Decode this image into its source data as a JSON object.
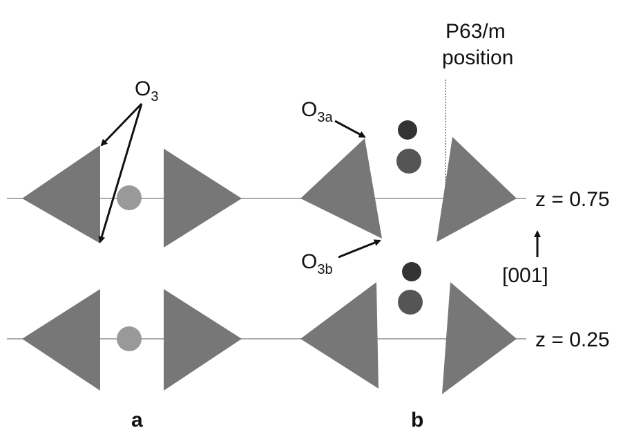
{
  "labels": {
    "o3": {
      "main": "O",
      "sub": "3"
    },
    "o3a": {
      "main": "O",
      "sub": "3a"
    },
    "o3b": {
      "main": "O",
      "sub": "3b"
    },
    "symmetry": {
      "line1": "P63/m",
      "line2": "position"
    },
    "z_top": "z = 0.75",
    "z_bottom": "z = 0.25",
    "direction": "[001]",
    "panel_a": "a",
    "panel_b": "b"
  }
}
